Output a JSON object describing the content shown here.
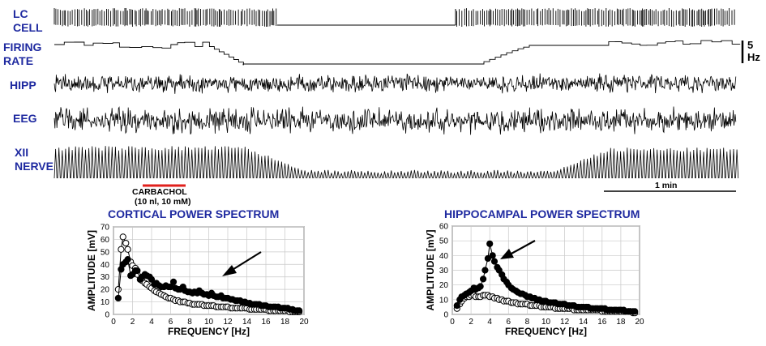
{
  "traces": {
    "lc_cell": [
      "LC",
      "CELL"
    ],
    "firing_rate": [
      "FIRING",
      "RATE"
    ],
    "hipp": "HIPP",
    "eeg": "EEG",
    "xii_nerve": [
      "XII",
      "NERVE"
    ],
    "rate_scale": [
      "5",
      "Hz"
    ],
    "time_scale": "1 min",
    "carbachol": [
      "CARBACHOL",
      "(10 nl, 10 mM)"
    ],
    "colors": {
      "label": "#1f2aa0",
      "carbachol_bar": "#e0201c",
      "trace": "#000000"
    }
  },
  "chart_data": [
    {
      "type": "scatter",
      "title": "CORTICAL POWER SPECTRUM",
      "xlabel": "FREQUENCY [Hz]",
      "ylabel": "AMPLITUDE [mV]",
      "xlim": [
        0,
        20
      ],
      "ylim": [
        0,
        70
      ],
      "xticks": [
        0,
        2,
        4,
        6,
        8,
        10,
        12,
        14,
        16,
        18,
        20
      ],
      "yticks": [
        0,
        10,
        20,
        30,
        40,
        50,
        60,
        70
      ],
      "grid": true,
      "series": [
        {
          "marker": "filled",
          "x": [
            0.5,
            0.8,
            1.0,
            1.3,
            1.5,
            1.8,
            2.0,
            2.3,
            2.5,
            2.8,
            3.0,
            3.3,
            3.5,
            3.8,
            4.0,
            4.3,
            4.5,
            4.8,
            5.0,
            5.3,
            5.5,
            5.8,
            6.0,
            6.3,
            6.5,
            6.8,
            7.0,
            7.3,
            7.5,
            7.8,
            8.0,
            8.3,
            8.5,
            8.8,
            9.0,
            9.3,
            9.5,
            9.8,
            10.0,
            10.3,
            10.5,
            10.8,
            11.0,
            11.3,
            11.5,
            11.8,
            12.0,
            12.3,
            12.5,
            12.8,
            13.0,
            13.3,
            13.5,
            13.8,
            14.0,
            14.3,
            14.5,
            14.8,
            15.0,
            15.3,
            15.5,
            15.8,
            16.0,
            16.3,
            16.5,
            16.8,
            17.0,
            17.3,
            17.5,
            17.8,
            18.0,
            18.3,
            18.5,
            18.8,
            19.0,
            19.3,
            19.5
          ],
          "y": [
            13,
            36,
            40,
            42,
            44,
            31,
            32,
            35,
            35,
            28,
            30,
            32,
            31,
            30,
            28,
            24,
            25,
            23,
            22,
            22,
            23,
            22,
            22,
            26,
            21,
            20,
            20,
            22,
            19,
            18,
            18,
            17,
            18,
            17,
            19,
            17,
            16,
            16,
            15,
            17,
            15,
            14,
            14,
            15,
            13,
            13,
            13,
            12,
            12,
            11,
            11,
            11,
            10,
            10,
            9,
            9,
            8,
            8,
            8,
            8,
            7,
            7,
            7,
            6,
            6,
            6,
            6,
            6,
            5,
            5,
            5,
            5,
            4,
            4,
            3,
            3,
            3
          ]
        },
        {
          "marker": "open",
          "x": [
            0.5,
            0.8,
            1.0,
            1.3,
            1.5,
            1.8,
            2.0,
            2.3,
            2.5,
            2.8,
            3.0,
            3.3,
            3.5,
            3.8,
            4.0,
            4.3,
            4.5,
            4.8,
            5.0,
            5.3,
            5.5,
            5.8,
            6.0,
            6.3,
            6.5,
            6.8,
            7.0,
            7.3,
            7.5,
            7.8,
            8.0,
            8.3,
            8.5,
            8.8,
            9.0,
            9.3,
            9.5,
            9.8,
            10.0,
            10.3,
            10.5,
            10.8,
            11.0,
            11.3,
            11.5,
            11.8,
            12.0,
            12.3,
            12.5,
            12.8,
            13.0,
            13.3,
            13.5,
            13.8,
            14.0,
            14.3,
            14.5,
            14.8,
            15.0,
            15.3,
            15.5,
            15.8,
            16.0,
            16.3,
            16.5,
            16.8,
            17.0,
            17.3,
            17.5,
            17.8,
            18.0,
            18.3,
            18.5,
            18.8,
            19.0,
            19.3,
            19.5
          ],
          "y": [
            20,
            52,
            62,
            57,
            52,
            42,
            39,
            37,
            32,
            28,
            27,
            25,
            24,
            22,
            21,
            19,
            18,
            17,
            16,
            15,
            14,
            13,
            13,
            12,
            11,
            11,
            10,
            10,
            10,
            9,
            9,
            8,
            8,
            8,
            8,
            8,
            7,
            7,
            7,
            7,
            7,
            6,
            6,
            6,
            6,
            6,
            6,
            5,
            5,
            5,
            5,
            5,
            5,
            5,
            5,
            4,
            4,
            4,
            4,
            4,
            4,
            4,
            4,
            3,
            3,
            3,
            3,
            3,
            3,
            3,
            3,
            3,
            2,
            2,
            2,
            2,
            2
          ]
        }
      ],
      "annotation": "arrow"
    },
    {
      "type": "scatter",
      "title": "HIPPOCAMPAL POWER SPECTRUM",
      "xlabel": "FREQUENCY [Hz]",
      "ylabel": "AMPLITUDE [mV]",
      "xlim": [
        0,
        20
      ],
      "ylim": [
        0,
        60
      ],
      "xticks": [
        0,
        2,
        4,
        6,
        8,
        10,
        12,
        14,
        16,
        18,
        20
      ],
      "yticks": [
        0,
        10,
        20,
        30,
        40,
        50,
        60
      ],
      "grid": true,
      "series": [
        {
          "marker": "filled",
          "x": [
            0.5,
            0.8,
            1.0,
            1.3,
            1.5,
            1.8,
            2.0,
            2.3,
            2.5,
            2.8,
            3.0,
            3.3,
            3.5,
            3.8,
            4.0,
            4.3,
            4.5,
            4.8,
            5.0,
            5.3,
            5.5,
            5.8,
            6.0,
            6.3,
            6.5,
            6.8,
            7.0,
            7.3,
            7.5,
            7.8,
            8.0,
            8.3,
            8.5,
            8.8,
            9.0,
            9.3,
            9.5,
            9.8,
            10.0,
            10.3,
            10.5,
            10.8,
            11.0,
            11.3,
            11.5,
            11.8,
            12.0,
            12.3,
            12.5,
            12.8,
            13.0,
            13.3,
            13.5,
            13.8,
            14.0,
            14.3,
            14.5,
            14.8,
            15.0,
            15.3,
            15.5,
            15.8,
            16.0,
            16.3,
            16.5,
            16.8,
            17.0,
            17.3,
            17.5,
            17.8,
            18.0,
            18.3,
            18.5,
            18.8,
            19.0,
            19.3,
            19.5
          ],
          "y": [
            6,
            10,
            12,
            13,
            14,
            15,
            16,
            18,
            17,
            18,
            19,
            24,
            30,
            38,
            48,
            40,
            36,
            32,
            30,
            27,
            24,
            22,
            20,
            18,
            17,
            16,
            15,
            14,
            14,
            13,
            12,
            12,
            11,
            11,
            10,
            10,
            9,
            9,
            9,
            8,
            8,
            8,
            8,
            7,
            7,
            7,
            7,
            6,
            6,
            6,
            6,
            5,
            5,
            5,
            5,
            5,
            5,
            4,
            4,
            4,
            4,
            4,
            4,
            4,
            3,
            3,
            3,
            3,
            3,
            3,
            3,
            3,
            2,
            2,
            2,
            2,
            2
          ]
        },
        {
          "marker": "open",
          "x": [
            0.5,
            0.8,
            1.0,
            1.3,
            1.5,
            1.8,
            2.0,
            2.3,
            2.5,
            2.8,
            3.0,
            3.3,
            3.5,
            3.8,
            4.0,
            4.3,
            4.5,
            4.8,
            5.0,
            5.3,
            5.5,
            5.8,
            6.0,
            6.3,
            6.5,
            6.8,
            7.0,
            7.3,
            7.5,
            7.8,
            8.0,
            8.3,
            8.5,
            8.8,
            9.0,
            9.3,
            9.5,
            9.8,
            10.0,
            10.3,
            10.5,
            10.8,
            11.0,
            11.3,
            11.5,
            11.8,
            12.0,
            12.3,
            12.5,
            12.8,
            13.0,
            13.3,
            13.5,
            13.8,
            14.0,
            14.3,
            14.5,
            14.8,
            15.0,
            15.3,
            15.5,
            15.8,
            16.0,
            16.3,
            16.5,
            16.8,
            17.0,
            17.3,
            17.5,
            17.8,
            18.0,
            18.3,
            18.5,
            18.8,
            19.0,
            19.3,
            19.5
          ],
          "y": [
            4,
            7,
            9,
            11,
            12,
            12,
            13,
            13,
            12,
            12,
            12,
            13,
            13,
            13,
            12,
            12,
            11,
            11,
            10,
            10,
            9,
            9,
            9,
            8,
            8,
            8,
            7,
            7,
            7,
            7,
            7,
            6,
            6,
            6,
            6,
            6,
            5,
            5,
            5,
            5,
            5,
            5,
            4,
            4,
            4,
            4,
            4,
            4,
            4,
            4,
            3,
            3,
            3,
            3,
            3,
            3,
            3,
            3,
            3,
            3,
            3,
            3,
            2,
            2,
            2,
            2,
            2,
            2,
            2,
            2,
            2,
            2,
            2,
            2,
            2,
            1,
            1
          ]
        }
      ],
      "annotation": "arrow"
    }
  ]
}
